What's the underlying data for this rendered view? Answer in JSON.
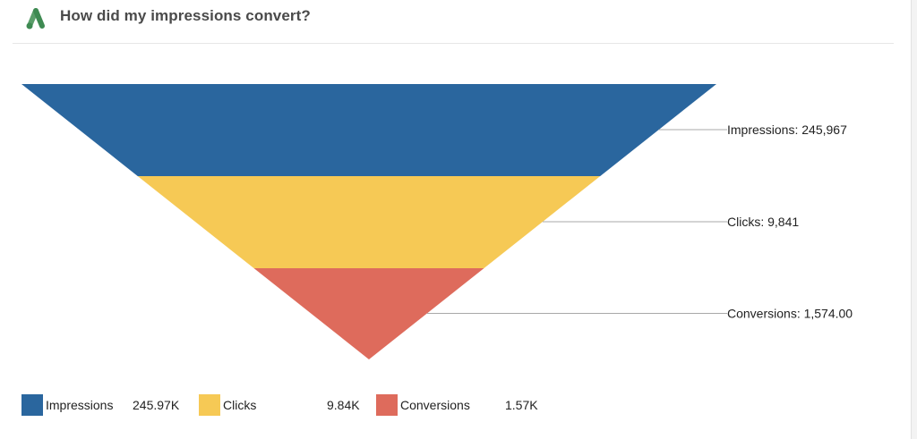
{
  "header": {
    "title": "How did my impressions convert?",
    "logo_icon": "google-ads-logo",
    "logo_colors": {
      "primary": "#3e8a52",
      "secondary": "#5a9e6a"
    }
  },
  "chart_data": {
    "type": "funnel",
    "stages": [
      {
        "name": "Impressions",
        "value": 245967,
        "label": "Impressions: 245,967",
        "legend_value": "245.97K",
        "color": "#2a669e"
      },
      {
        "name": "Clicks",
        "value": 9841,
        "label": "Clicks: 9,841",
        "legend_value": "9.84K",
        "color": "#f6c955"
      },
      {
        "name": "Conversions",
        "value": 1574,
        "label": "Conversions: 1,574.00",
        "legend_value": "1.57K",
        "color": "#de6b5c"
      }
    ],
    "legend_position": "bottom-left"
  }
}
